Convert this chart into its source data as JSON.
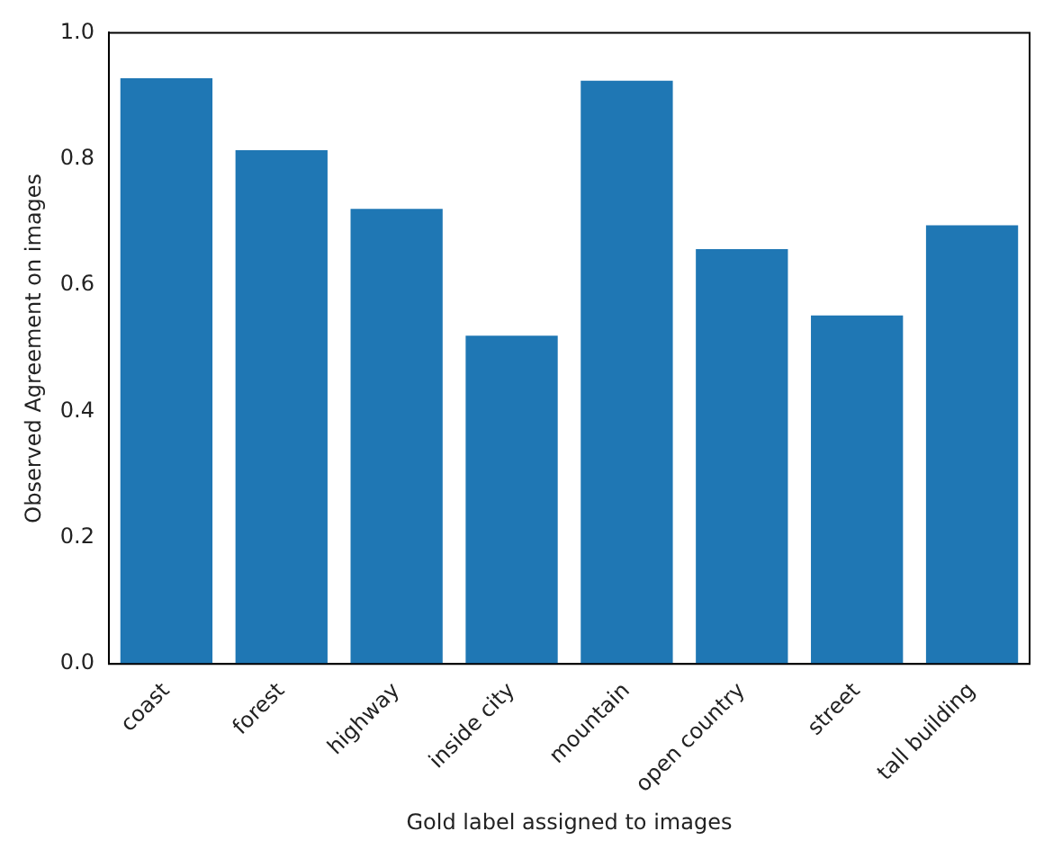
{
  "chart_data": {
    "type": "bar",
    "xlabel": "Gold label assigned to images",
    "ylabel": "Observed Agreement on images",
    "categories": [
      "coast",
      "forest",
      "highway",
      "inside city",
      "mountain",
      "open country",
      "street",
      "tall building"
    ],
    "values": [
      0.928,
      0.814,
      0.721,
      0.52,
      0.924,
      0.657,
      0.552,
      0.695
    ],
    "color": "#1f77b4",
    "ylim": [
      0,
      1
    ],
    "yticks": [
      {
        "value": 0,
        "label": "0.0"
      },
      {
        "value": 0.2,
        "label": "0.2"
      },
      {
        "value": 0.4,
        "label": "0.4"
      },
      {
        "value": 0.6,
        "label": "0.6"
      },
      {
        "value": 0.8,
        "label": "0.8"
      },
      {
        "value": 1,
        "label": "1.0"
      }
    ],
    "grid": false,
    "legend": false
  }
}
